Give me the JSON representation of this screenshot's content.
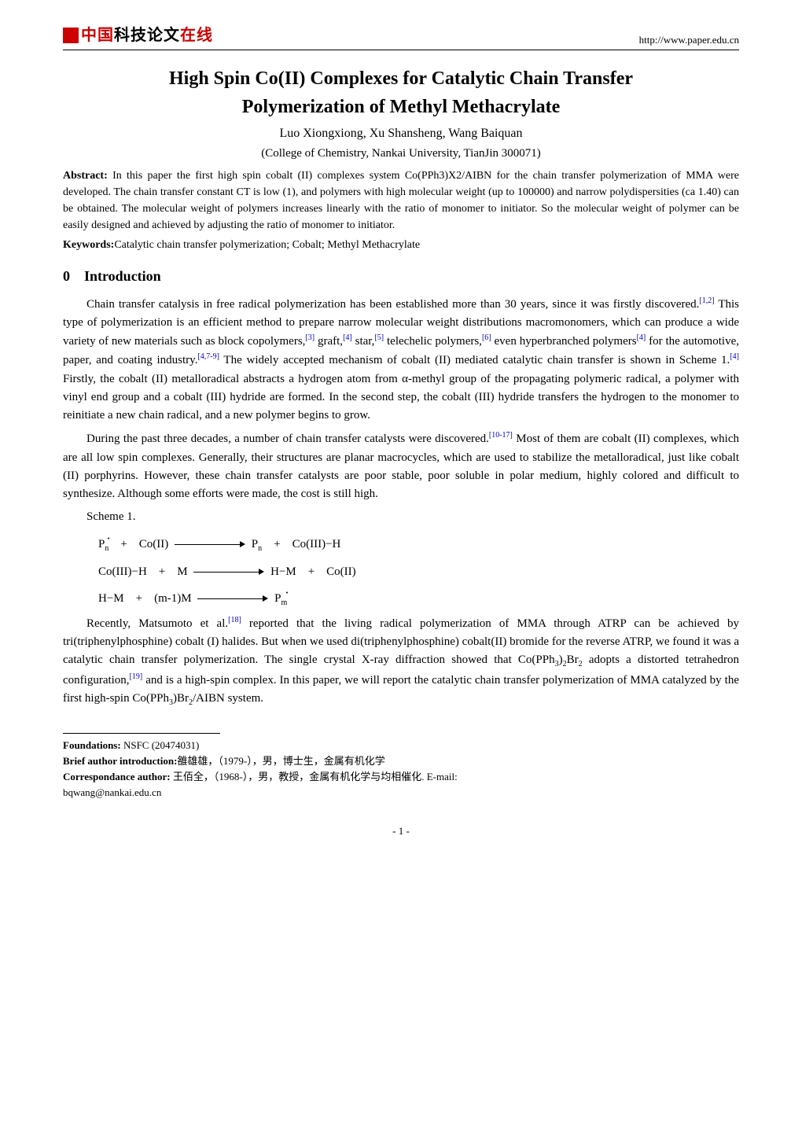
{
  "header": {
    "logo_cn_red": "中国",
    "logo_cn_black1": "科技论文",
    "logo_cn_black2": "在线",
    "url": "http://www.paper.edu.cn"
  },
  "title_line1": "High Spin Co(II) Complexes for Catalytic Chain Transfer",
  "title_line2": "Polymerization of Methyl Methacrylate",
  "authors": "Luo Xiongxiong, Xu Shansheng, Wang Baiquan",
  "affiliation": "(College of Chemistry, Nankai University, TianJin 300071)",
  "abstract_label": "Abstract:",
  "abstract_text": " In this paper the first high spin cobalt (II) complexes system Co(PPh3)X2/AIBN for the chain transfer polymerization of MMA were developed. The chain transfer constant CT is low (1), and polymers with high molecular weight (up to 100000) and narrow polydispersities (ca 1.40) can be obtained. The molecular weight of polymers increases linearly with the ratio of monomer to initiator. So the molecular weight of polymer can be easily designed and achieved by adjusting the ratio of monomer to initiator.",
  "keywords_label": "Keywords:",
  "keywords_text": "Catalytic chain transfer polymerization; Cobalt; Methyl Methacrylate",
  "section_intro": "0 Introduction",
  "para1": {
    "t1": "Chain transfer catalysis in free radical polymerization has been established more than 30 years, since it was firstly discovered.",
    "c1": "[1,2]",
    "t2": " This type of polymerization is an efficient method to prepare narrow molecular weight distributions macromonomers, which can produce a wide variety of new materials such as block copolymers,",
    "c2": "[3]",
    "t3": " graft,",
    "c3": "[4]",
    "t4": " star,",
    "c4": "[5]",
    "t5": " telechelic polymers,",
    "c5": "[6]",
    "t6": " even hyperbranched polymers",
    "c6": "[4]",
    "t7": " for the automotive, paper, and coating industry.",
    "c7": "[4,7-9]",
    "t8": " The widely accepted mechanism of cobalt (II) mediated catalytic chain transfer is shown in Scheme 1.",
    "c8": "[4]",
    "t9": " Firstly, the cobalt (II) metalloradical abstracts a hydrogen atom from α-methyl group of the propagating polymeric radical, a polymer with vinyl end group and a cobalt (III) hydride are formed. In the second step, the cobalt (III) hydride transfers the hydrogen to the monomer to reinitiate a new chain radical, and a new polymer begins to grow."
  },
  "para2": {
    "t1": "During the past three decades, a number of chain transfer catalysts were discovered.",
    "c1": "[10-17]",
    "t2": " Most of them are cobalt (II) complexes, which are all low spin complexes. Generally, their structures are planar macrocycles, which are used to stabilize the metalloradical, just like cobalt (II) porphyrins. However, these chain transfer catalysts are poor stable, poor soluble in polar medium, highly colored and difficult to synthesize. Although some efforts were made, the cost is still high."
  },
  "scheme_label": "Scheme 1.",
  "scheme": {
    "l1_left_a": "P",
    "l1_left_sub": "n",
    "l1_left_b": " + Co(II)",
    "l1_right": "P",
    "l1_right_sub": "n",
    "l1_right_b": " + Co(III)−H",
    "l2_left": "Co(III)−H + M",
    "l2_right": "H−M + Co(II)",
    "l3_left": "H−M + (m-1)M",
    "l3_right_a": "P",
    "l3_right_sub": "m"
  },
  "para3": {
    "t1": "Recently, Matsumoto et al.",
    "c1": "[18]",
    "t2": " reported that the living radical polymerization of MMA through ATRP can be achieved by tri(triphenylphosphine) cobalt (I) halides. But when we used di(triphenylphosphine) cobalt(II) bromide for the reverse ATRP, we found it was a catalytic chain transfer polymerization. The single crystal X-ray diffraction showed that Co(PPh",
    "sub1": "3",
    "t3": ")",
    "sub2": "2",
    "t4": "Br",
    "sub3": "2",
    "t5": " adopts a distorted tetrahedron configuration,",
    "c2": "[19]",
    "t6": " and is a high-spin complex. In this paper, we will report the catalytic chain transfer polymerization of MMA catalyzed by the first high-spin Co(PPh",
    "sub4": "3",
    "t7": ")Br",
    "sub5": "2",
    "t8": "/AIBN system."
  },
  "footnotes": {
    "foundations_label": "Foundations:",
    "foundations_text": " NSFC (20474031)",
    "brief_label": "Brief author introduction:",
    "brief_text": "雒雄雄，（1979-），男，博士生，金属有机化学",
    "corr_label": "Correspondance author:",
    "corr_text": " 王佰全，（1968-），男，教授，金属有机化学与均相催化. E-mail:",
    "corr_email": "bqwang@nankai.edu.cn"
  },
  "page_number": "- 1 -"
}
